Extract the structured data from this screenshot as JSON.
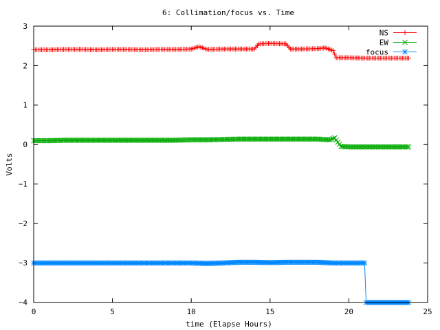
{
  "chart_data": {
    "type": "line",
    "title": "6: Collimation/focus vs. Time",
    "xlabel": "time (Elapse Hours)",
    "ylabel": "Volts",
    "xlim": [
      0,
      25
    ],
    "ylim": [
      -4,
      3
    ],
    "x_ticks": [
      "0",
      "5",
      "10",
      "15",
      "20",
      "25"
    ],
    "y_ticks": [
      "3",
      "2",
      "1",
      "0",
      "−1",
      "−2",
      "−3",
      "−4"
    ],
    "legend_position": "top-right",
    "grid": false,
    "series": [
      {
        "name": "NS",
        "color": "#ff0000",
        "marker": "plus",
        "points": [
          [
            0,
            2.4
          ],
          [
            1,
            2.4
          ],
          [
            2,
            2.41
          ],
          [
            3,
            2.41
          ],
          [
            4,
            2.4
          ],
          [
            5,
            2.41
          ],
          [
            6,
            2.41
          ],
          [
            7,
            2.4
          ],
          [
            8,
            2.41
          ],
          [
            9,
            2.41
          ],
          [
            10,
            2.42
          ],
          [
            10.5,
            2.48
          ],
          [
            11,
            2.41
          ],
          [
            12,
            2.42
          ],
          [
            13,
            2.42
          ],
          [
            14,
            2.42
          ],
          [
            14.3,
            2.55
          ],
          [
            15,
            2.56
          ],
          [
            16,
            2.55
          ],
          [
            16.3,
            2.42
          ],
          [
            17,
            2.42
          ],
          [
            18,
            2.43
          ],
          [
            18.5,
            2.45
          ],
          [
            19,
            2.38
          ],
          [
            19.2,
            2.2
          ],
          [
            20,
            2.2
          ],
          [
            21,
            2.19
          ],
          [
            22,
            2.19
          ],
          [
            23,
            2.19
          ],
          [
            23.8,
            2.19
          ]
        ]
      },
      {
        "name": "EW",
        "color": "#00aa00",
        "marker": "cross",
        "points": [
          [
            0,
            0.1
          ],
          [
            1,
            0.1
          ],
          [
            2,
            0.11
          ],
          [
            3,
            0.11
          ],
          [
            4,
            0.11
          ],
          [
            5,
            0.11
          ],
          [
            6,
            0.11
          ],
          [
            7,
            0.11
          ],
          [
            8,
            0.11
          ],
          [
            9,
            0.11
          ],
          [
            10,
            0.12
          ],
          [
            11,
            0.12
          ],
          [
            12,
            0.13
          ],
          [
            13,
            0.14
          ],
          [
            14,
            0.14
          ],
          [
            15,
            0.14
          ],
          [
            16,
            0.14
          ],
          [
            17,
            0.14
          ],
          [
            18,
            0.14
          ],
          [
            18.8,
            0.12
          ],
          [
            19.1,
            0.17
          ],
          [
            19.5,
            -0.05
          ],
          [
            20,
            -0.06
          ],
          [
            21,
            -0.06
          ],
          [
            22,
            -0.06
          ],
          [
            23,
            -0.06
          ],
          [
            23.8,
            -0.06
          ]
        ]
      },
      {
        "name": "focus",
        "color": "#0088ff",
        "marker": "star",
        "points": [
          [
            0,
            -3.0
          ],
          [
            1,
            -3.0
          ],
          [
            2,
            -3.0
          ],
          [
            3,
            -3.0
          ],
          [
            4,
            -3.0
          ],
          [
            5,
            -3.0
          ],
          [
            6,
            -3.0
          ],
          [
            7,
            -3.0
          ],
          [
            8,
            -3.0
          ],
          [
            9,
            -3.0
          ],
          [
            10,
            -3.0
          ],
          [
            11,
            -3.01
          ],
          [
            12,
            -3.0
          ],
          [
            13,
            -2.98
          ],
          [
            14,
            -2.98
          ],
          [
            15,
            -2.99
          ],
          [
            16,
            -2.98
          ],
          [
            17,
            -2.98
          ],
          [
            18,
            -2.98
          ],
          [
            19,
            -3.0
          ],
          [
            20,
            -3.0
          ],
          [
            21,
            -3.0
          ],
          [
            21.1,
            -4.0
          ],
          [
            22,
            -4.0
          ],
          [
            23,
            -4.0
          ],
          [
            23.8,
            -4.0
          ]
        ]
      }
    ]
  }
}
